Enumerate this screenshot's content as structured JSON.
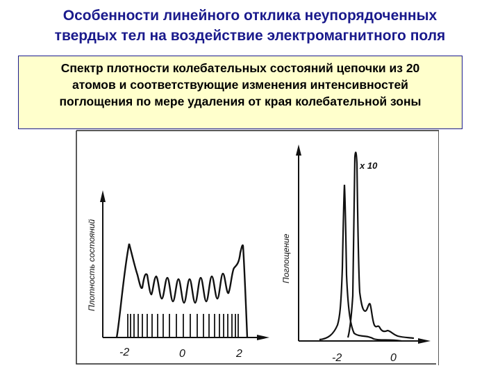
{
  "title": {
    "line1": "Особенности линейного отклика неупорядоченных",
    "line2": "твердых тел на воздействие электромагнитного поля"
  },
  "caption": {
    "line1": "Спектр плотности колебательных состояний цепочки из 20",
    "line2": "атомов и соответствующие изменения интенсивностей",
    "line3": "поглощения по мере удаления от края колебательной зоны"
  },
  "figure": {
    "left_panel": {
      "ylabel": "Плотность состояний",
      "ticks": [
        "-2",
        "0",
        "2"
      ]
    },
    "right_panel": {
      "ylabel": "Поглощение",
      "ticks": [
        "-2",
        "0"
      ],
      "annotation": "x 10"
    }
  }
}
